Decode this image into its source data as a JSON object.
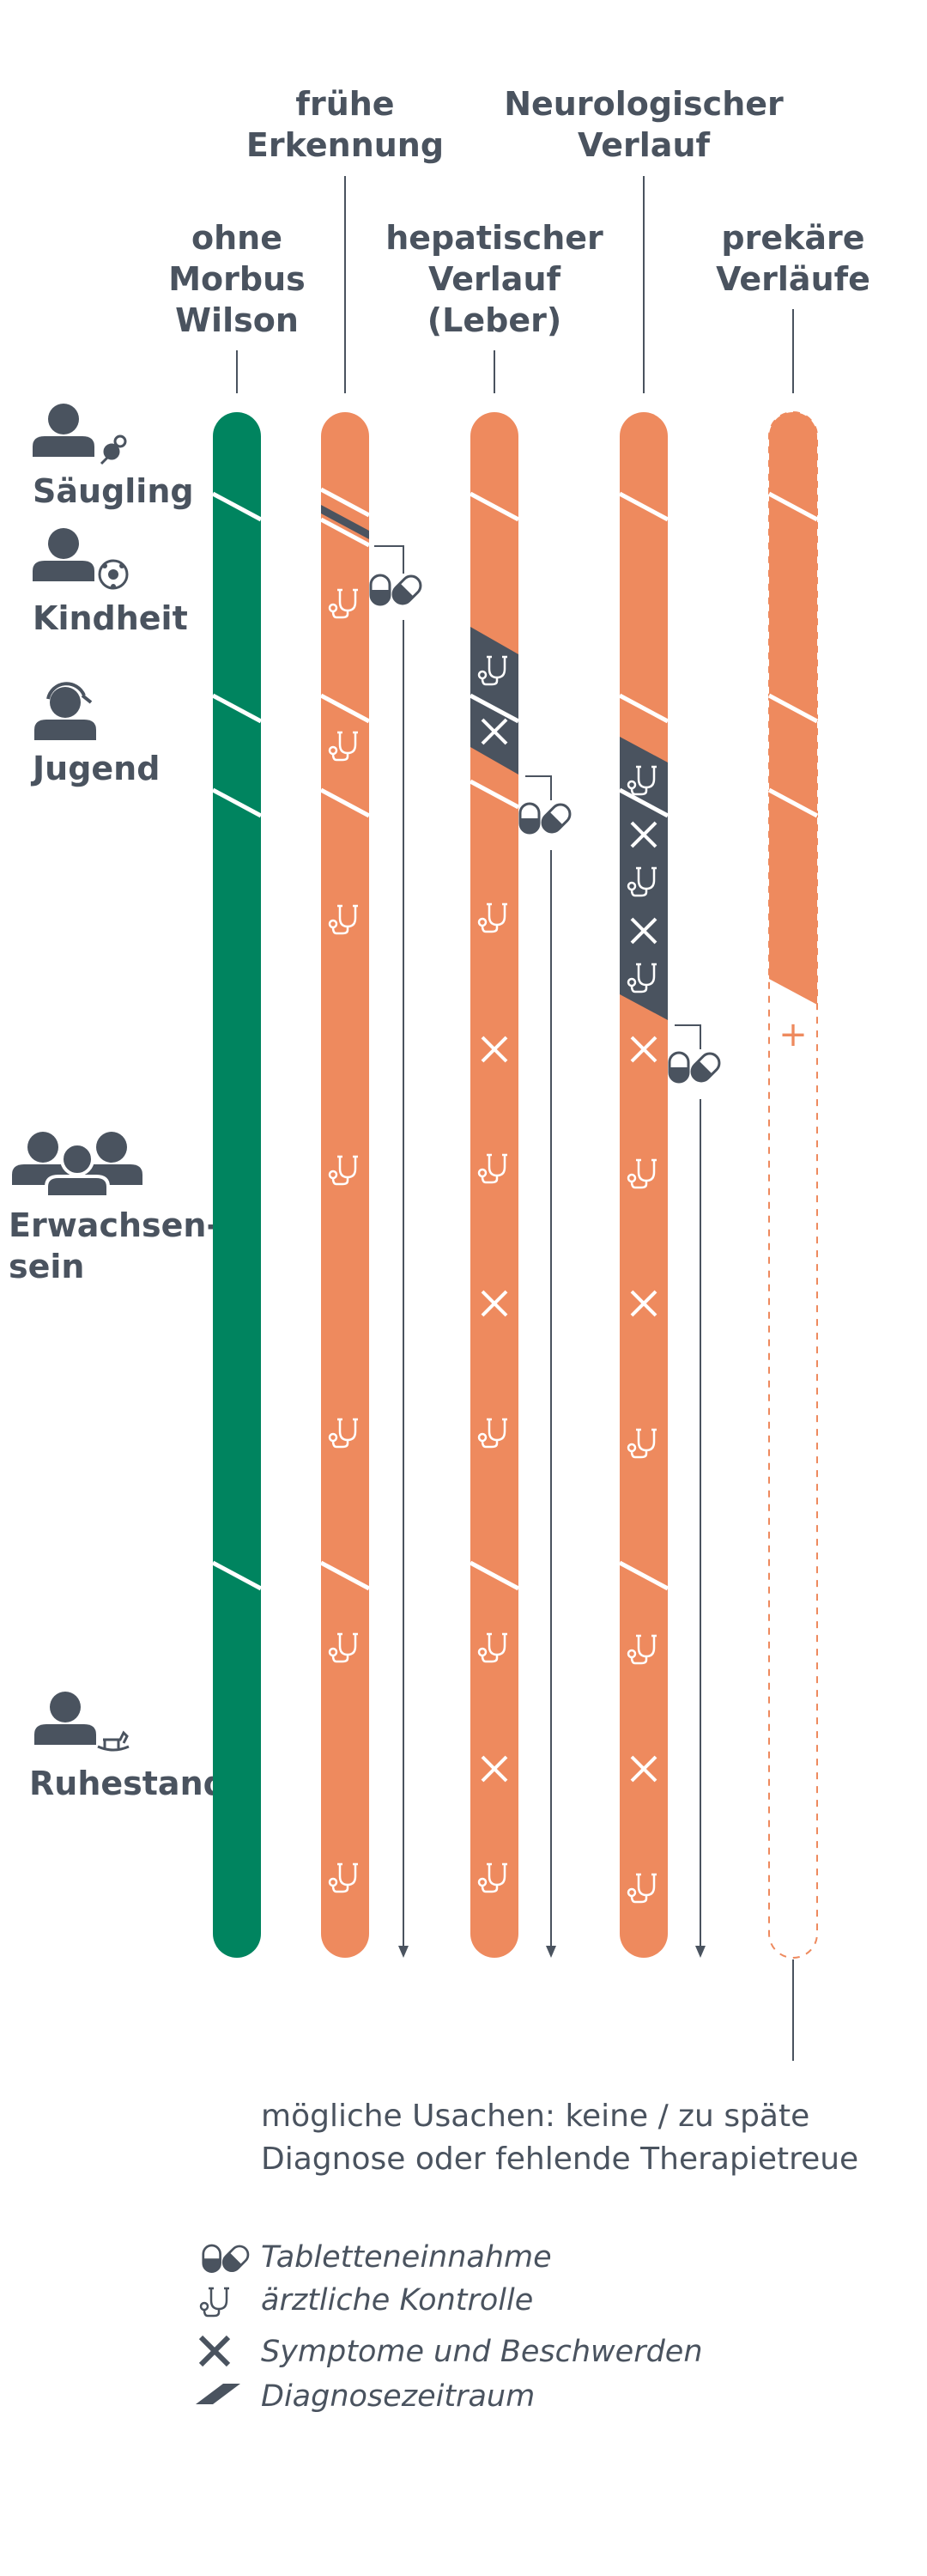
{
  "colors": {
    "orange": "#ee8a5e",
    "green": "#00845f",
    "dark": "#4a535f"
  },
  "columns": [
    {
      "id": "ohne",
      "lines": [
        "ohne",
        "Morbus",
        "Wilson"
      ]
    },
    {
      "id": "frueh",
      "lines": [
        "frühe",
        "Erkennung"
      ]
    },
    {
      "id": "hepatisch",
      "lines": [
        "hepatischer",
        "Verlauf",
        "(Leber)"
      ]
    },
    {
      "id": "neuro",
      "lines": [
        "Neurologischer",
        "Verlauf"
      ]
    },
    {
      "id": "prekaer",
      "lines": [
        "prekäre",
        "Verläufe"
      ]
    }
  ],
  "stages": [
    {
      "id": "saeugling",
      "lines": [
        "Säugling"
      ],
      "icon": "baby-pacifier-icon"
    },
    {
      "id": "kindheit",
      "lines": [
        "Kindheit"
      ],
      "icon": "child-football-icon"
    },
    {
      "id": "jugend",
      "lines": [
        "Jugend"
      ],
      "icon": "teen-headphones-icon"
    },
    {
      "id": "erwachsen",
      "lines": [
        "Erwachsen-",
        "sein"
      ],
      "icon": "adults-group-icon"
    },
    {
      "id": "ruhestand",
      "lines": [
        "Ruhestand"
      ],
      "icon": "rocking-horse-icon"
    }
  ],
  "note": [
    "mögliche Usachen: keine / zu späte",
    "Diagnose oder fehlende Therapietreue"
  ],
  "legend": [
    {
      "icon": "pill-icon",
      "label": "Tabletteneinnahme"
    },
    {
      "icon": "stethoscope-icon",
      "label": "ärztliche Kontrolle"
    },
    {
      "icon": "cross-icon",
      "label": "Symptome und Beschwerden"
    },
    {
      "icon": "parallelogram-icon",
      "label": "Diagnosezeitraum"
    }
  ],
  "death_symbol": "+"
}
